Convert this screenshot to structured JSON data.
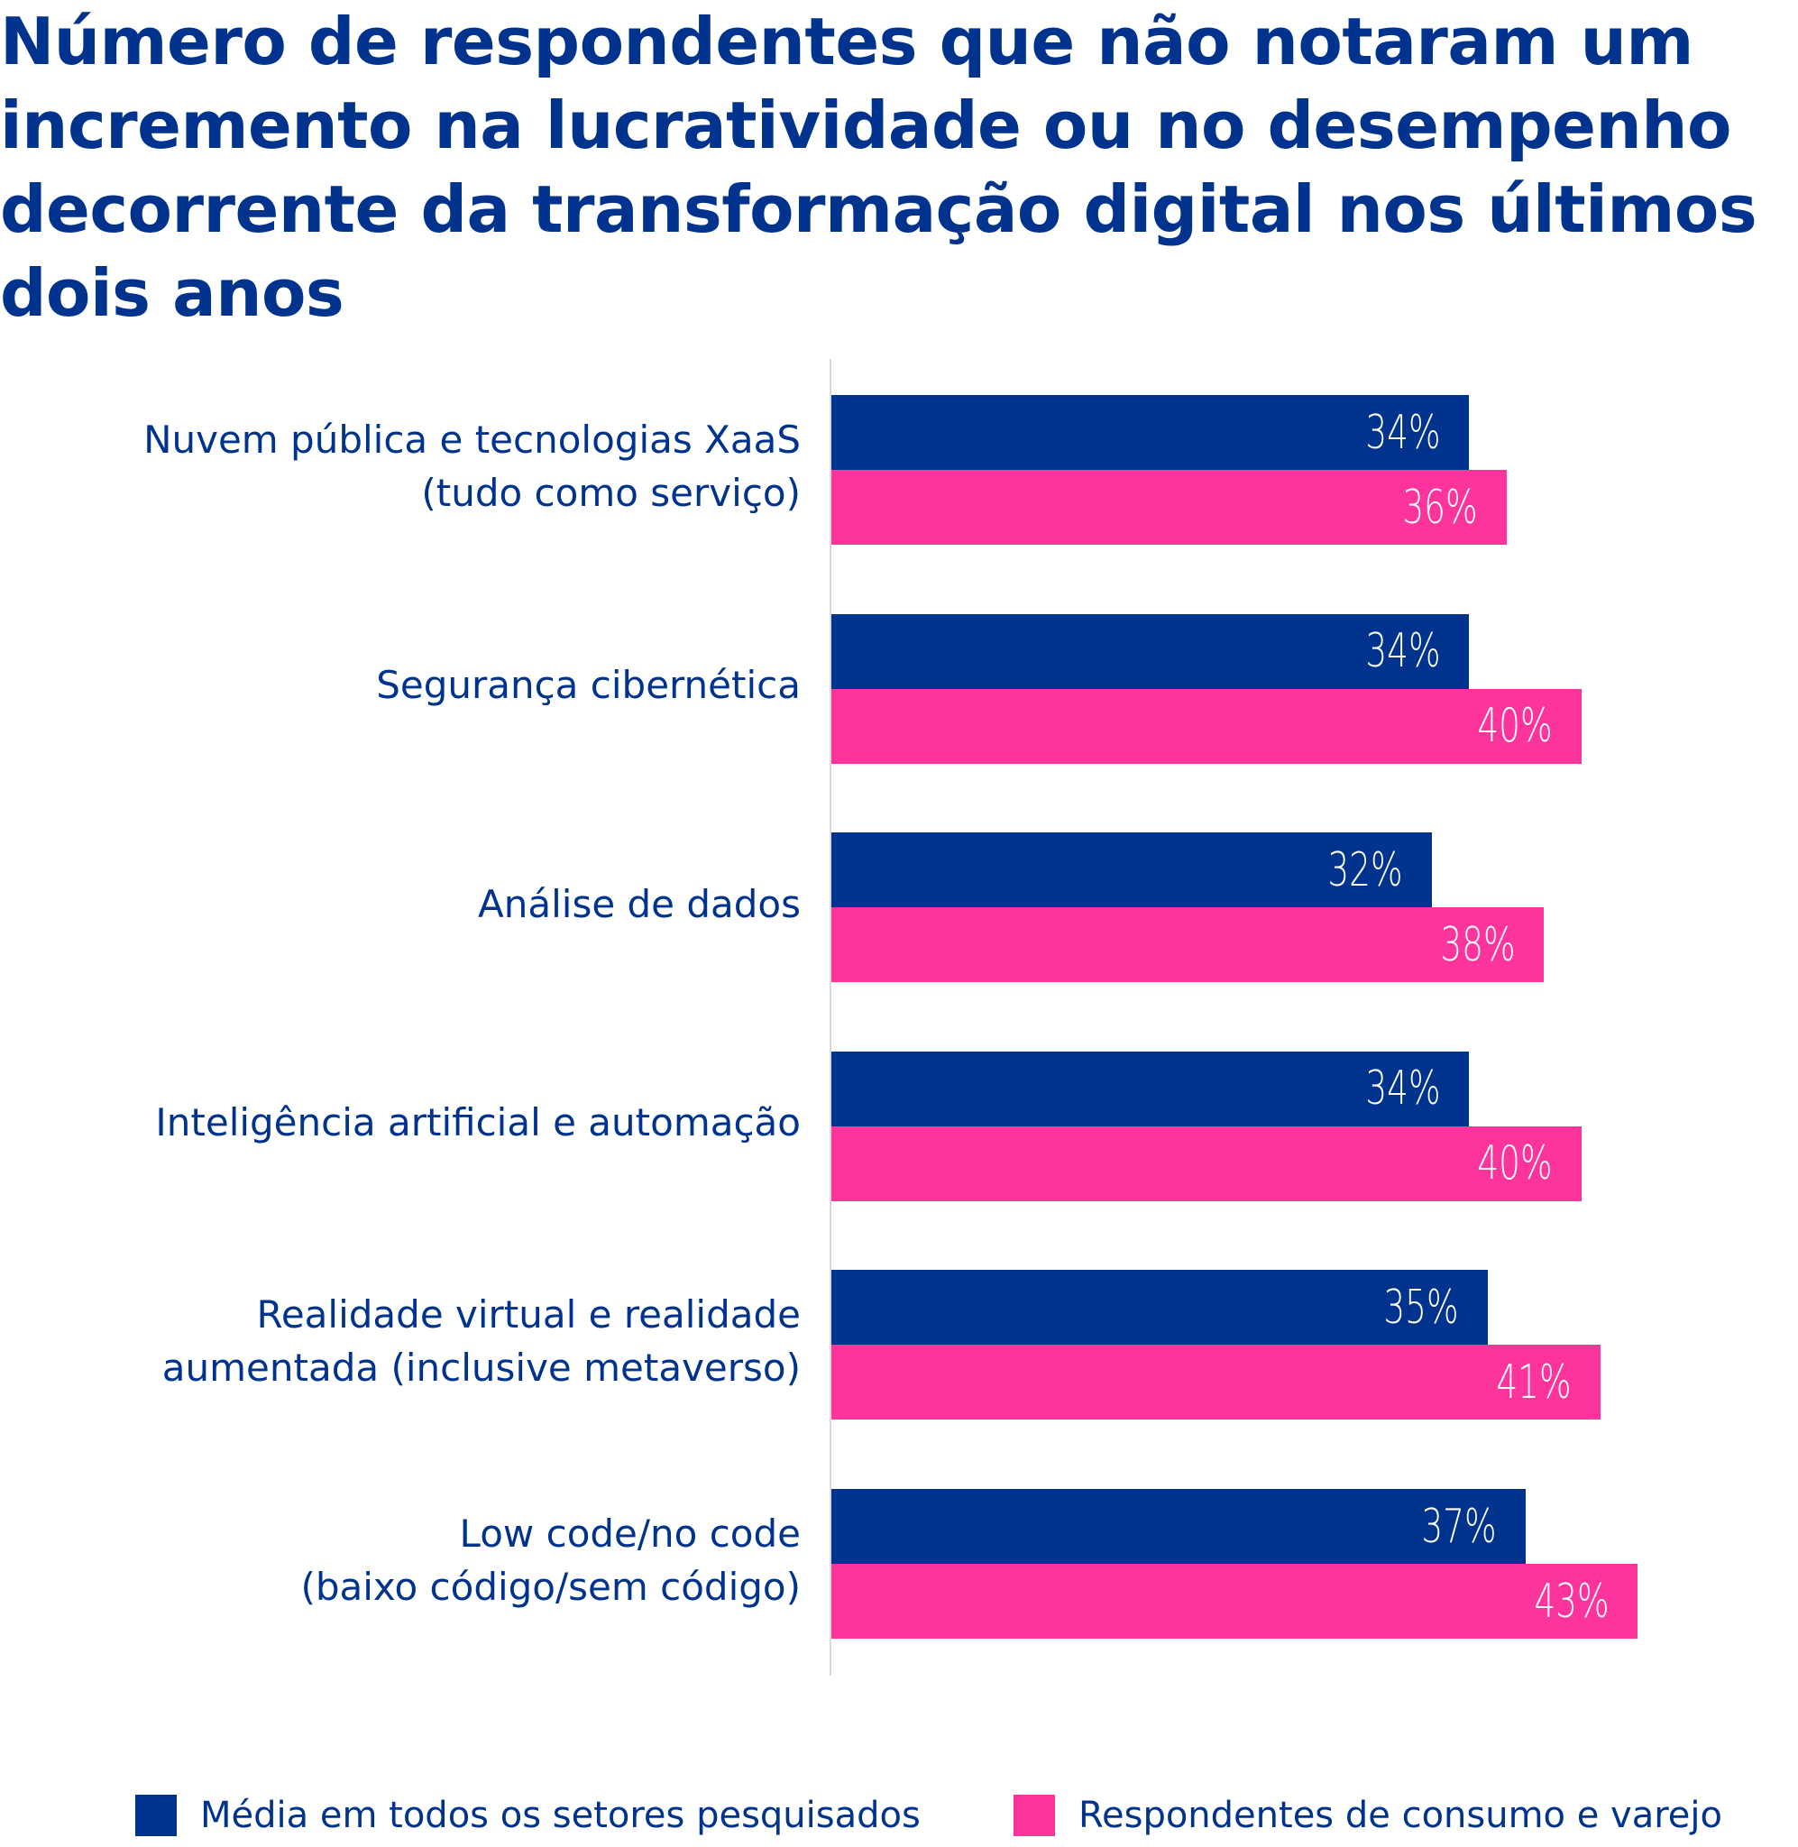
{
  "title_lines": [
    "Número de respondentes que não notaram um",
    "incremento na lucratividade ou no desempenho",
    "decorrente da transformação digital nos últimos",
    "dois anos"
  ],
  "colors": {
    "series_blue": "#00338D",
    "series_pink": "#FD349C",
    "text": "#00338D",
    "axis": "#d9d9d9"
  },
  "chart_data": {
    "type": "bar",
    "orientation": "horizontal",
    "title": "Número de respondentes que não notaram um incremento na lucratividade ou no desempenho decorrente da transformação digital nos últimos dois anos",
    "xlabel": "",
    "ylabel": "",
    "xlim": [
      0,
      50
    ],
    "grid": false,
    "legend_position": "bottom",
    "categories": [
      [
        "Nuvem pública e tecnologias XaaS",
        "(tudo como serviço)"
      ],
      [
        "Segurança cibernética"
      ],
      [
        "Análise de dados"
      ],
      [
        "Inteligência artificial e automação"
      ],
      [
        "Realidade virtual e realidade",
        "aumentada (inclusive metaverso)"
      ],
      [
        "Low code/no code",
        "(baixo código/sem código)"
      ]
    ],
    "series": [
      {
        "name": "Média em todos os setores pesquisados",
        "color": "#00338D",
        "values": [
          34,
          34,
          32,
          34,
          35,
          37
        ],
        "labels": [
          "34%",
          "34%",
          "32%",
          "34%",
          "35%",
          "37%"
        ]
      },
      {
        "name": "Respondentes de consumo e varejo",
        "color": "#FD349C",
        "values": [
          36,
          40,
          38,
          40,
          41,
          43
        ],
        "labels": [
          "36%",
          "40%",
          "38%",
          "40%",
          "41%",
          "43%"
        ]
      }
    ]
  },
  "legend": [
    {
      "label": "Média em todos os setores pesquisados",
      "color": "#00338D"
    },
    {
      "label": "Respondentes de consumo e varejo",
      "color": "#FD349C"
    }
  ]
}
